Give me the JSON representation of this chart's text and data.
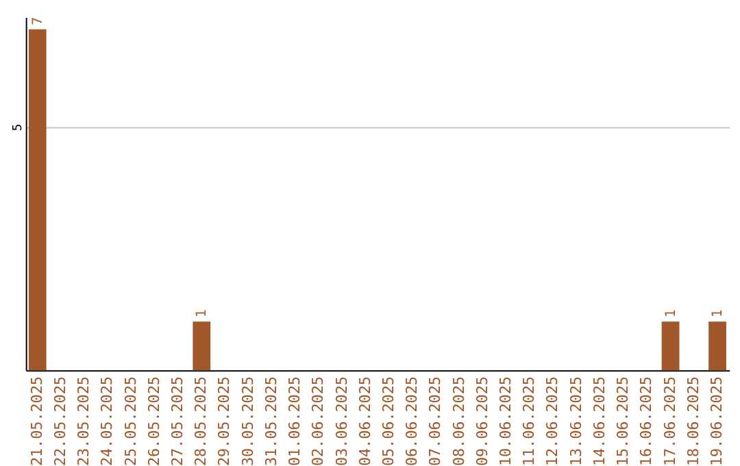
{
  "chart_data": {
    "type": "bar",
    "categories": [
      "21.05.2025",
      "22.05.2025",
      "23.05.2025",
      "24.05.2025",
      "25.05.2025",
      "26.05.2025",
      "27.05.2025",
      "28.05.2025",
      "29.05.2025",
      "30.05.2025",
      "31.05.2025",
      "01.06.2025",
      "02.06.2025",
      "03.06.2025",
      "04.06.2025",
      "05.06.2025",
      "06.06.2025",
      "07.06.2025",
      "08.06.2025",
      "09.06.2025",
      "10.06.2025",
      "11.06.2025",
      "12.06.2025",
      "13.06.2025",
      "14.06.2025",
      "15.06.2025",
      "16.06.2025",
      "17.06.2025",
      "18.06.2025",
      "19.06.2025"
    ],
    "values": [
      7,
      0,
      0,
      0,
      0,
      0,
      0,
      1,
      0,
      0,
      0,
      0,
      0,
      0,
      0,
      0,
      0,
      0,
      0,
      0,
      0,
      0,
      0,
      0,
      0,
      0,
      0,
      1,
      0,
      1
    ],
    "value_labels": [
      "7",
      null,
      null,
      null,
      null,
      null,
      null,
      "1",
      null,
      null,
      null,
      null,
      null,
      null,
      null,
      null,
      null,
      null,
      null,
      null,
      null,
      null,
      null,
      null,
      null,
      null,
      null,
      "1",
      null,
      "1"
    ],
    "color": "#a0582a",
    "ylim": [
      0,
      7.25
    ],
    "yticks": [
      5
    ],
    "grid": "y"
  }
}
